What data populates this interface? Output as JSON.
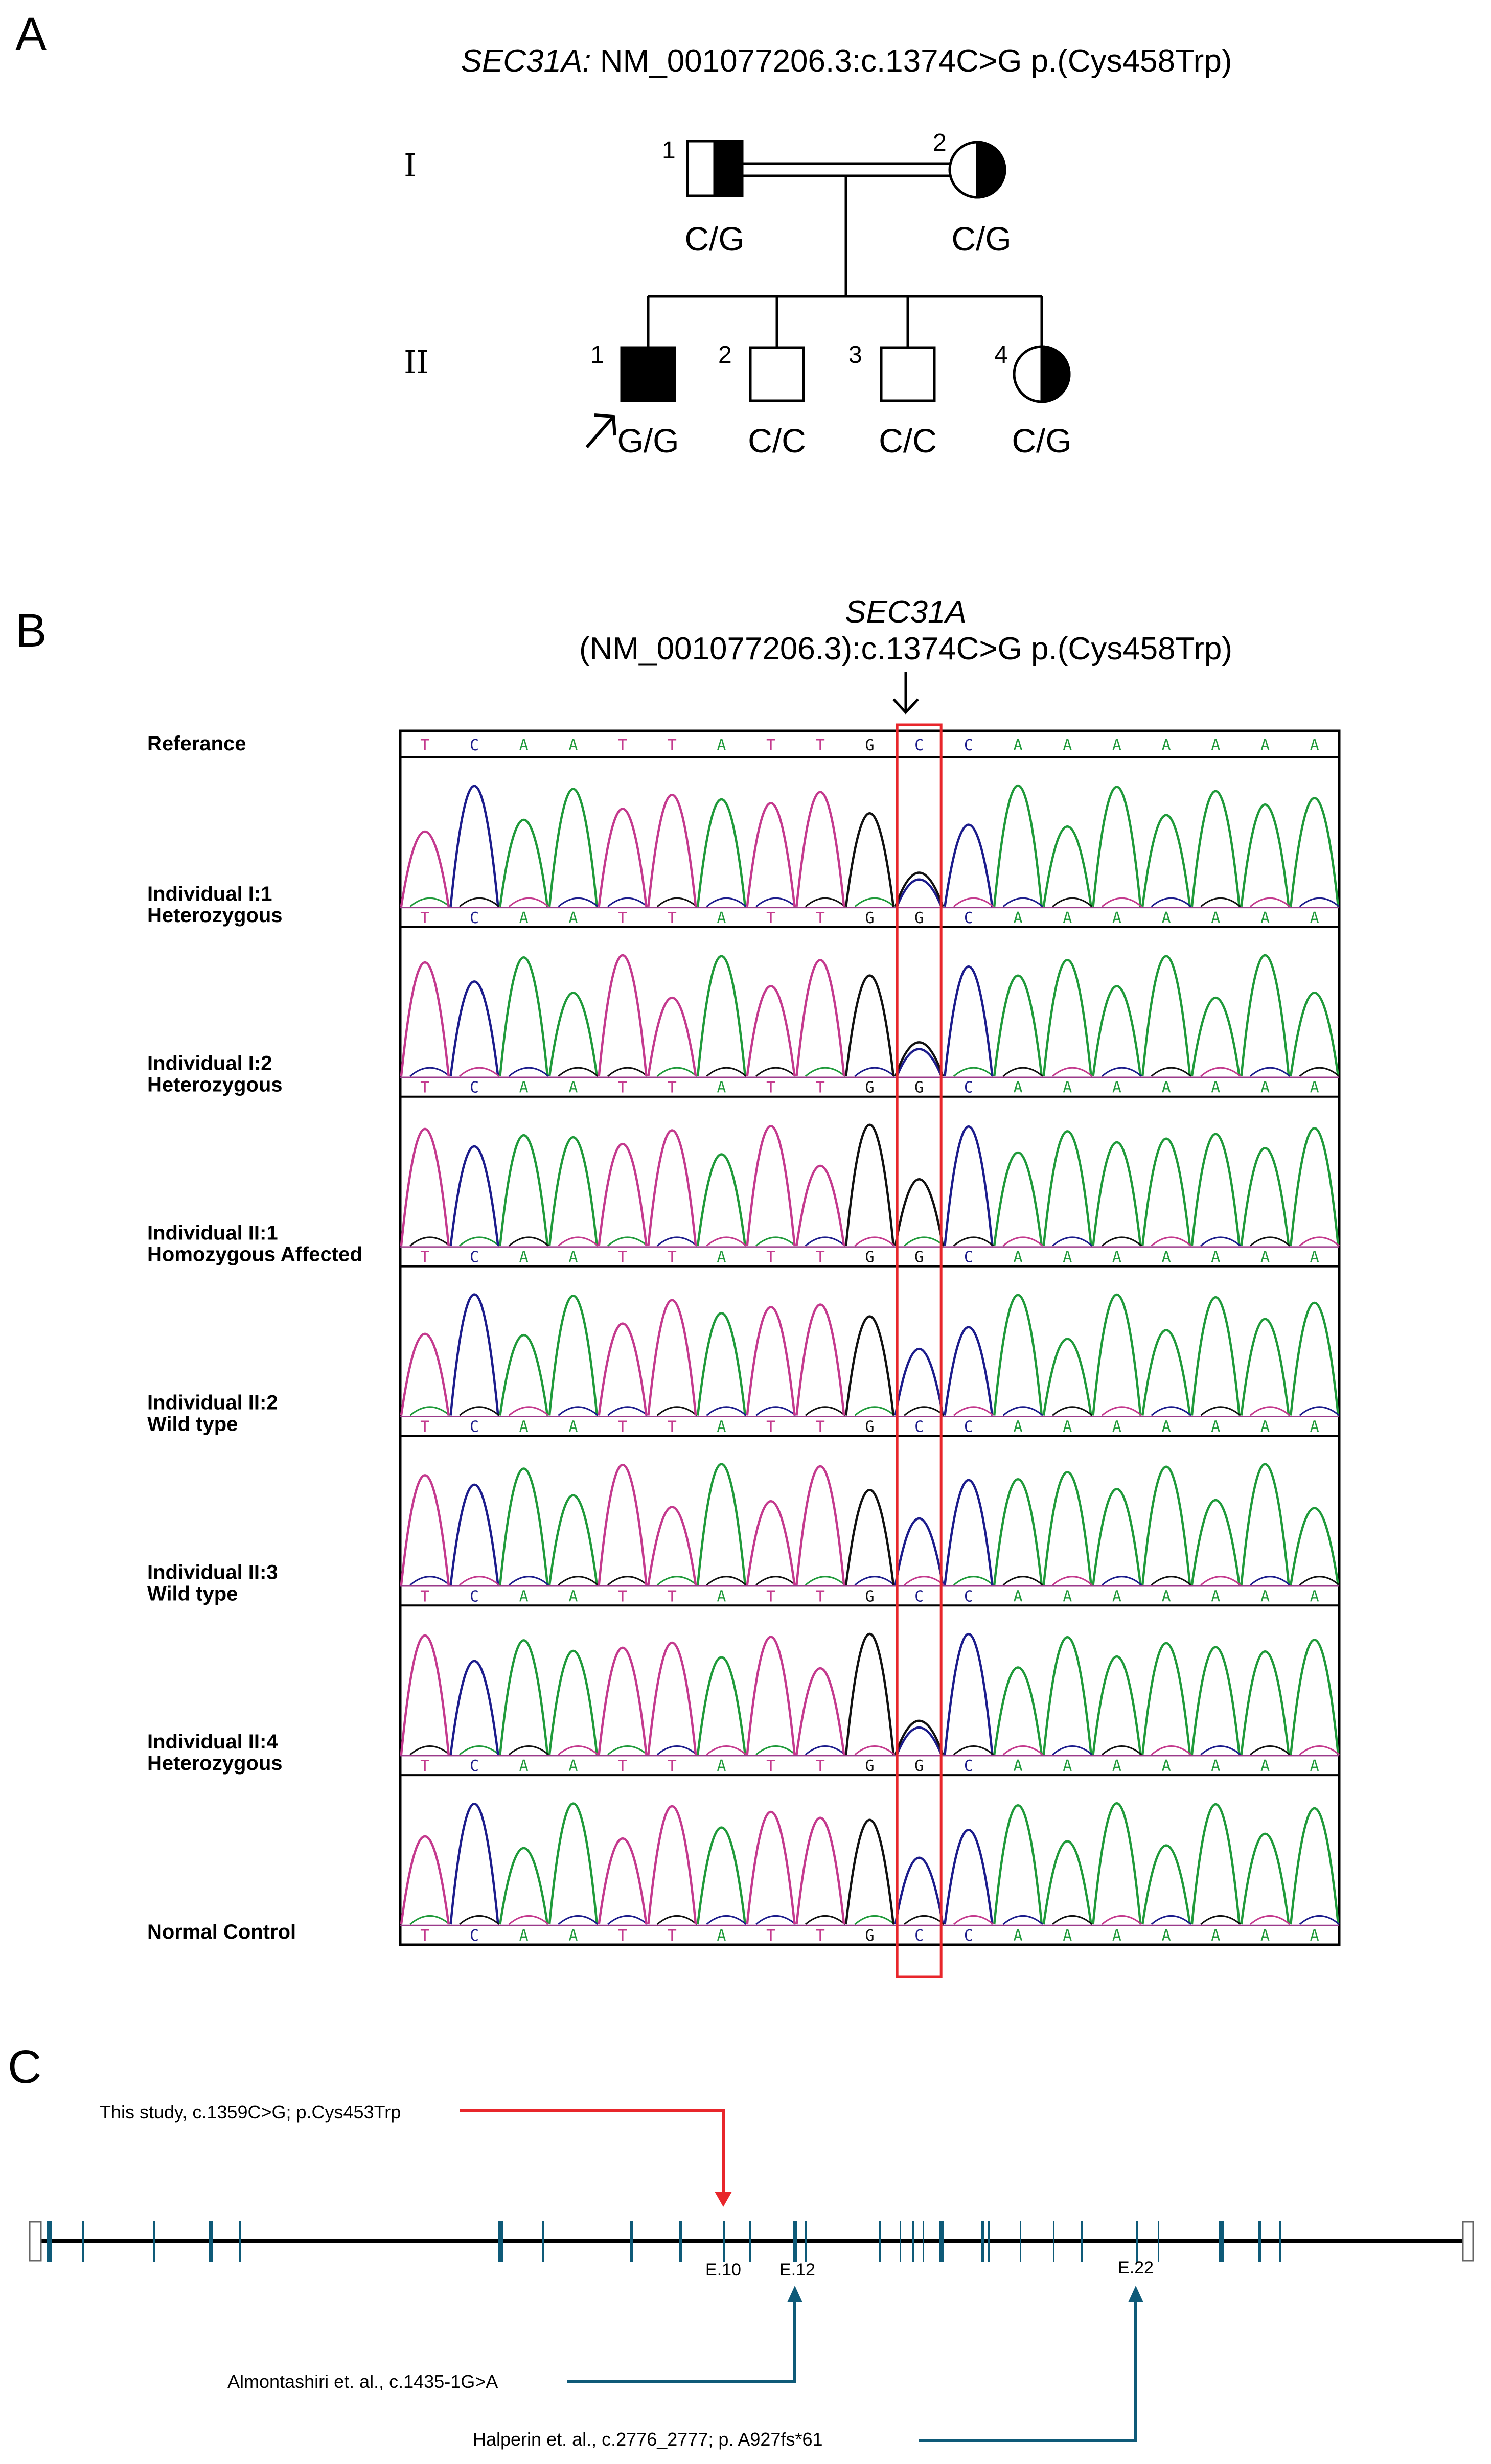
{
  "panels": {
    "a": "A",
    "b": "B",
    "c": "C"
  },
  "panel_a": {
    "title_gene": "SEC31A:",
    "title_rest": " NM_001077206.3:c.1374C>G p.(Cys458Trp)",
    "generations": [
      "I",
      "II"
    ],
    "individuals": [
      {
        "gen": "I",
        "num": "1",
        "sex": "male",
        "status": "carrier",
        "genotype": "C/G"
      },
      {
        "gen": "I",
        "num": "2",
        "sex": "female",
        "status": "carrier",
        "genotype": "C/G"
      },
      {
        "gen": "II",
        "num": "1",
        "sex": "male",
        "status": "affected",
        "genotype": "G/G",
        "proband": true
      },
      {
        "gen": "II",
        "num": "2",
        "sex": "male",
        "status": "unaffected",
        "genotype": "C/C"
      },
      {
        "gen": "II",
        "num": "3",
        "sex": "male",
        "status": "unaffected",
        "genotype": "C/C"
      },
      {
        "gen": "II",
        "num": "4",
        "sex": "female",
        "status": "carrier",
        "genotype": "C/G"
      }
    ]
  },
  "panel_b": {
    "header_gene": "SEC31A",
    "header_variant": "(NM_001077206.3):c.1374C>G p.(Cys458Trp)",
    "reference_label": "Referance",
    "reference_bases": [
      "T",
      "C",
      "A",
      "A",
      "T",
      "T",
      "A",
      "T",
      "T",
      "G",
      "C",
      "C",
      "A",
      "A",
      "A",
      "A",
      "A",
      "A",
      "A"
    ],
    "rows": [
      {
        "line1": "Individual I:1",
        "line2": "Heterozygous",
        "bases": [
          "T",
          "C",
          "A",
          "A",
          "T",
          "T",
          "A",
          "T",
          "T",
          "G",
          "G",
          "C",
          "A",
          "A",
          "A",
          "A",
          "A",
          "A",
          "A"
        ],
        "call": "het"
      },
      {
        "line1": "Individual I:2",
        "line2": "Heterozygous",
        "bases": [
          "T",
          "C",
          "A",
          "A",
          "T",
          "T",
          "A",
          "T",
          "T",
          "G",
          "G",
          "C",
          "A",
          "A",
          "A",
          "A",
          "A",
          "A",
          "A"
        ],
        "call": "het"
      },
      {
        "line1": "Individual II:1",
        "line2": "Homozygous Affected",
        "bases": [
          "T",
          "C",
          "A",
          "A",
          "T",
          "T",
          "A",
          "T",
          "T",
          "G",
          "G",
          "C",
          "A",
          "A",
          "A",
          "A",
          "A",
          "A",
          "A"
        ],
        "call": "hom"
      },
      {
        "line1": "Individual II:2",
        "line2": "Wild type",
        "bases": [
          "T",
          "C",
          "A",
          "A",
          "T",
          "T",
          "A",
          "T",
          "T",
          "G",
          "C",
          "C",
          "A",
          "A",
          "A",
          "A",
          "A",
          "A",
          "A"
        ],
        "call": "wt"
      },
      {
        "line1": "Individual II:3",
        "line2": "Wild type",
        "bases": [
          "T",
          "C",
          "A",
          "A",
          "T",
          "T",
          "A",
          "T",
          "T",
          "G",
          "C",
          "C",
          "A",
          "A",
          "A",
          "A",
          "A",
          "A",
          "A"
        ],
        "call": "wt"
      },
      {
        "line1": "Individual II:4",
        "line2": "Heterozygous",
        "bases": [
          "T",
          "C",
          "A",
          "A",
          "T",
          "T",
          "A",
          "T",
          "T",
          "G",
          "G",
          "C",
          "A",
          "A",
          "A",
          "A",
          "A",
          "A",
          "A"
        ],
        "call": "het"
      },
      {
        "line1": "",
        "line2": "Normal Control",
        "bases": [
          "T",
          "C",
          "A",
          "A",
          "T",
          "T",
          "A",
          "T",
          "T",
          "G",
          "C",
          "C",
          "A",
          "A",
          "A",
          "A",
          "A",
          "A",
          "A"
        ],
        "call": "wt"
      }
    ],
    "colors": {
      "A": "#1f9a3a",
      "C": "#1c1c8c",
      "G": "#111111",
      "T": "#c43a8e",
      "highlight": "#e8262b"
    }
  },
  "panel_c": {
    "this_study": "This study, c.1359C>G; p.Cys453Trp",
    "almontashiri": "Almontashiri et. al., c.1435-1G>A",
    "halperin": "Halperin et. al., c.2776_2777; p. A927fs*61",
    "exon_labels": [
      "E.10",
      "E.12",
      "E.22"
    ],
    "colors": {
      "this_study": "#e8262b",
      "literature": "#0e5a78",
      "exon": "#0e5a78"
    }
  }
}
